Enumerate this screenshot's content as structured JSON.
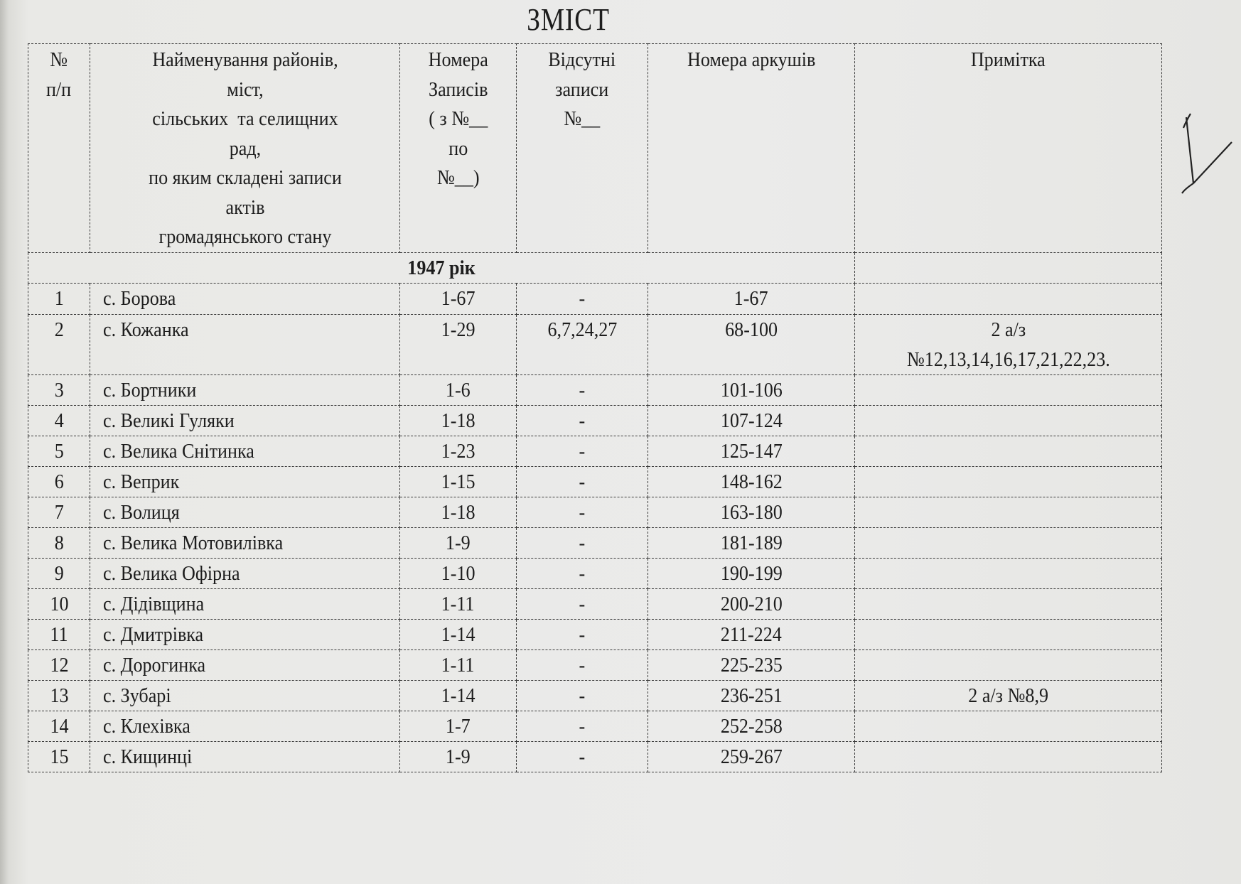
{
  "title": "ЗМІСТ",
  "headers": [
    "№\nп/п",
    "Найменування районів,\nміст,\nсільських  та селищних\nрад,\nпо яким складені записи\nактів\nгромадянського стану",
    "Номера\nЗаписів\n( з №__\nпо\n№__)",
    "Відсутні\nзаписи\n№__",
    "Номера аркушів",
    "Примітка"
  ],
  "year_label": "1947 рік",
  "rows": [
    {
      "no": "1",
      "name": "с. Борова",
      "records": "1-67",
      "missing": "-",
      "sheets": "1-67",
      "note": ""
    },
    {
      "no": "2",
      "name": "с. Кожанка",
      "records": "1-29",
      "missing": "6,7,24,27",
      "sheets": "68-100",
      "note": "2 а/з\n№12,13,14,16,17,21,22,23."
    },
    {
      "no": "3",
      "name": "с. Бортники",
      "records": "1-6",
      "missing": "-",
      "sheets": "101-106",
      "note": ""
    },
    {
      "no": "4",
      "name": "с. Великі Гуляки",
      "records": "1-18",
      "missing": "-",
      "sheets": "107-124",
      "note": ""
    },
    {
      "no": "5",
      "name": "с. Велика Снітинка",
      "records": "1-23",
      "missing": "-",
      "sheets": "125-147",
      "note": ""
    },
    {
      "no": "6",
      "name": "с. Веприк",
      "records": "1-15",
      "missing": "-",
      "sheets": "148-162",
      "note": ""
    },
    {
      "no": "7",
      "name": "с. Волиця",
      "records": "1-18",
      "missing": "-",
      "sheets": "163-180",
      "note": ""
    },
    {
      "no": "8",
      "name": "с. Велика Мотовилівка",
      "records": "1-9",
      "missing": "-",
      "sheets": "181-189",
      "note": ""
    },
    {
      "no": "9",
      "name": "с. Велика Офірна",
      "records": "1-10",
      "missing": "-",
      "sheets": "190-199",
      "note": ""
    },
    {
      "no": "10",
      "name": "с. Дідівщина",
      "records": "1-11",
      "missing": "-",
      "sheets": "200-210",
      "note": ""
    },
    {
      "no": "11",
      "name": "с. Дмитрівка",
      "records": "1-14",
      "missing": "-",
      "sheets": "211-224",
      "note": ""
    },
    {
      "no": "12",
      "name": "с. Дорогинка",
      "records": "1-11",
      "missing": "-",
      "sheets": "225-235",
      "note": ""
    },
    {
      "no": "13",
      "name": "с. Зубарі",
      "records": "1-14",
      "missing": "-",
      "sheets": "236-251",
      "note": "2 а/з №8,9"
    },
    {
      "no": "14",
      "name": "с. Клехівка",
      "records": "1-7",
      "missing": "-",
      "sheets": "252-258",
      "note": ""
    },
    {
      "no": "15",
      "name": "с. Кищинці",
      "records": "1-9",
      "missing": "-",
      "sheets": "259-267",
      "note": ""
    }
  ],
  "handwritten_mark": "I"
}
